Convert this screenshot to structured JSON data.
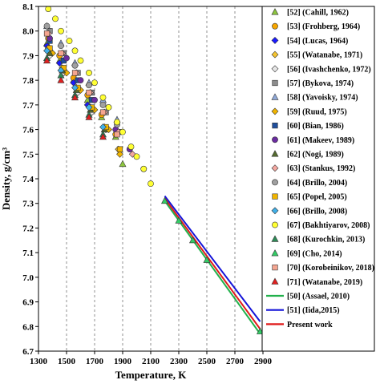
{
  "chart_data": {
    "type": "scatter",
    "xlabel": "Temperature,  K",
    "ylabel": "Density, g/cm³",
    "xlim": [
      1300,
      2900
    ],
    "ylim": [
      6.7,
      8.1
    ],
    "xticks": [
      1300,
      1500,
      1700,
      1900,
      2100,
      2300,
      2500,
      2700,
      2900
    ],
    "yticks": [
      6.7,
      6.8,
      6.9,
      7.0,
      7.1,
      7.2,
      7.3,
      7.4,
      7.5,
      7.6,
      7.7,
      7.8,
      7.9,
      8.0,
      8.1
    ],
    "grid": "vertical-dashed",
    "legend_position": "right",
    "series": [
      {
        "name": "[52] (Cahill, 1962)",
        "marker": "triangle",
        "color": "#8dc63f",
        "points": [
          [
            1360,
            7.95
          ],
          [
            1450,
            7.88
          ],
          [
            1550,
            7.8
          ],
          [
            1650,
            7.72
          ],
          [
            1750,
            7.65
          ],
          [
            1850,
            7.57
          ],
          [
            1900,
            7.46
          ]
        ]
      },
      {
        "name": "[53] (Frohberg, 1964)",
        "marker": "circle",
        "color": "#f7a600",
        "points": [
          [
            1370,
            7.97
          ],
          [
            1450,
            7.9
          ],
          [
            1550,
            7.81
          ],
          [
            1650,
            7.74
          ],
          [
            1750,
            7.66
          ],
          [
            1850,
            7.58
          ]
        ]
      },
      {
        "name": "[54] (Lucas, 1964)",
        "marker": "diamond",
        "color": "#1a1aff",
        "points": [
          [
            1360,
            7.94
          ],
          [
            1450,
            7.87
          ],
          [
            1550,
            7.79
          ],
          [
            1650,
            7.7
          ]
        ]
      },
      {
        "name": "[55] (Watanabe, 1971)",
        "marker": "diamond",
        "color": "#f4c430",
        "points": [
          [
            1370,
            7.93
          ],
          [
            1470,
            7.85
          ],
          [
            1570,
            7.77
          ],
          [
            1670,
            7.69
          ],
          [
            1770,
            7.61
          ],
          [
            1870,
            7.52
          ]
        ]
      },
      {
        "name": "[56] (Ivashchenko, 1972)",
        "marker": "diamond",
        "color": "#e6e6e6",
        "points": [
          [
            1380,
            7.9
          ],
          [
            1480,
            7.83
          ],
          [
            1580,
            7.75
          ],
          [
            1680,
            7.67
          ],
          [
            1780,
            7.6
          ]
        ]
      },
      {
        "name": "[57] (Bykova, 1974)",
        "marker": "square",
        "color": "#8c8c8c",
        "points": [
          [
            1380,
            8.0
          ],
          [
            1480,
            7.91
          ],
          [
            1580,
            7.83
          ],
          [
            1680,
            7.75
          ],
          [
            1780,
            7.67
          ],
          [
            1880,
            7.59
          ]
        ]
      },
      {
        "name": "[58] (Yavoisky, 1974)",
        "marker": "triangle",
        "color": "#8fa8d8",
        "points": [
          [
            1360,
            8.02
          ],
          [
            1460,
            7.95
          ],
          [
            1560,
            7.87
          ],
          [
            1660,
            7.79
          ],
          [
            1760,
            7.72
          ],
          [
            1860,
            7.64
          ]
        ]
      },
      {
        "name": "[59] (Ruud, 1975)",
        "marker": "diamond",
        "color": "#f0b400",
        "points": [
          [
            1400,
            7.91
          ],
          [
            1500,
            7.83
          ],
          [
            1600,
            7.76
          ],
          [
            1700,
            7.68
          ],
          [
            1800,
            7.6
          ],
          [
            1880,
            7.5
          ]
        ]
      },
      {
        "name": "[60] (Bian, 1986)",
        "marker": "square",
        "color": "#1f4e9c",
        "points": [
          [
            1380,
            7.96
          ],
          [
            1480,
            7.88
          ],
          [
            1580,
            7.8
          ],
          [
            1680,
            7.72
          ]
        ]
      },
      {
        "name": "[61] (Makeev, 1989)",
        "marker": "circle",
        "color": "#6a2ca0",
        "points": [
          [
            1380,
            7.97
          ],
          [
            1500,
            7.89
          ],
          [
            1600,
            7.8
          ],
          [
            1700,
            7.72
          ],
          [
            1850,
            7.6
          ],
          [
            1950,
            7.52
          ],
          [
            2050,
            7.44
          ]
        ]
      },
      {
        "name": "[62] (Nogi, 1989)",
        "marker": "triangle",
        "color": "#556b2f",
        "points": [
          [
            1380,
            7.91
          ],
          [
            1470,
            7.84
          ],
          [
            1570,
            7.76
          ],
          [
            1670,
            7.68
          ],
          [
            1770,
            7.6
          ]
        ]
      },
      {
        "name": "[63] (Stankus, 1992)",
        "marker": "diamond",
        "color": "#f4a7a0",
        "points": [
          [
            1370,
            7.99
          ],
          [
            1470,
            7.91
          ],
          [
            1570,
            7.83
          ],
          [
            1670,
            7.75
          ],
          [
            1770,
            7.67
          ],
          [
            1870,
            7.59
          ],
          [
            1970,
            7.5
          ]
        ]
      },
      {
        "name": "[64] (Brillo, 2004)",
        "marker": "circle",
        "color": "#a0a0a0",
        "points": [
          [
            1360,
            8.02
          ],
          [
            1460,
            7.94
          ],
          [
            1560,
            7.86
          ],
          [
            1660,
            7.78
          ],
          [
            1760,
            7.7
          ],
          [
            1860,
            7.62
          ]
        ]
      },
      {
        "name": "[65] (Popel, 2005)",
        "marker": "square",
        "color": "#f0b400",
        "points": [
          [
            1380,
            7.93
          ],
          [
            1480,
            7.85
          ],
          [
            1580,
            7.77
          ],
          [
            1680,
            7.69
          ],
          [
            1780,
            7.61
          ],
          [
            1880,
            7.52
          ]
        ]
      },
      {
        "name": "[66] (Brillo, 2008)",
        "marker": "diamond",
        "color": "#40b0e8",
        "points": [
          [
            1360,
            7.92
          ],
          [
            1460,
            7.84
          ],
          [
            1560,
            7.77
          ],
          [
            1660,
            7.69
          ],
          [
            1760,
            7.61
          ]
        ]
      },
      {
        "name": "[67] (Bakhtiyarov, 2008)",
        "marker": "circle",
        "color": "#ffff33",
        "points": [
          [
            1370,
            8.09
          ],
          [
            1420,
            8.05
          ],
          [
            1460,
            8.0
          ],
          [
            1520,
            7.96
          ],
          [
            1560,
            7.92
          ],
          [
            1600,
            7.88
          ],
          [
            1660,
            7.83
          ],
          [
            1700,
            7.79
          ],
          [
            1760,
            7.73
          ],
          [
            1800,
            7.69
          ],
          [
            1860,
            7.63
          ],
          [
            1900,
            7.59
          ],
          [
            1960,
            7.53
          ],
          [
            2000,
            7.49
          ],
          [
            2050,
            7.44
          ],
          [
            2100,
            7.38
          ]
        ]
      },
      {
        "name": "[68] (Kurochkin, 2013)",
        "marker": "triangle",
        "color": "#2e8b57",
        "points": [
          [
            1360,
            7.89
          ],
          [
            1460,
            7.82
          ],
          [
            1560,
            7.74
          ],
          [
            1660,
            7.66
          ],
          [
            1760,
            7.58
          ]
        ]
      },
      {
        "name": "[69] (Cho, 2014)",
        "marker": "triangle",
        "color": "#33cc66",
        "points": [
          [
            2200,
            7.31
          ],
          [
            2300,
            7.23
          ],
          [
            2400,
            7.15
          ],
          [
            2500,
            7.07
          ],
          [
            2880,
            6.78
          ]
        ]
      },
      {
        "name": "[70] (Korobeinikov, 2018)",
        "marker": "square",
        "color": "#f4a590",
        "points": [
          [
            1360,
            7.99
          ],
          [
            1460,
            7.91
          ],
          [
            1560,
            7.83
          ],
          [
            1660,
            7.75
          ],
          [
            1760,
            7.67
          ],
          [
            1860,
            7.58
          ]
        ]
      },
      {
        "name": "[71] (Watanabe, 2019)",
        "marker": "triangle",
        "color": "#e02020",
        "points": [
          [
            1360,
            7.88
          ],
          [
            1460,
            7.8
          ],
          [
            1560,
            7.73
          ],
          [
            1660,
            7.65
          ],
          [
            1760,
            7.57
          ]
        ]
      }
    ],
    "lines": [
      {
        "name": "[50] (Assael, 2010)",
        "color": "#22b14c",
        "points": [
          [
            2200,
            7.31
          ],
          [
            2880,
            6.77
          ]
        ]
      },
      {
        "name": "[51] (Iida,2015)",
        "color": "#1414d8",
        "points": [
          [
            2200,
            7.33
          ],
          [
            2880,
            6.82
          ]
        ]
      },
      {
        "name": "Present work",
        "color": "#e01b1b",
        "points": [
          [
            2200,
            7.32
          ],
          [
            2880,
            6.79
          ]
        ]
      }
    ]
  }
}
